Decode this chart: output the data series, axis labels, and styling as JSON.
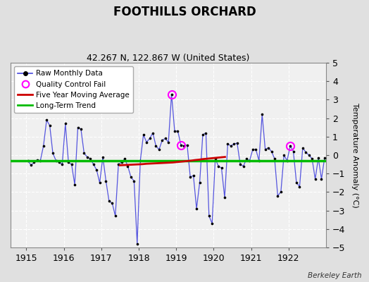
{
  "title": "FOOTHILLS ORCHARD",
  "subtitle": "42.267 N, 122.867 W (United States)",
  "ylabel": "Temperature Anomaly (°C)",
  "credit": "Berkeley Earth",
  "ylim": [
    -5,
    5
  ],
  "xlim": [
    1914.58,
    1923.0
  ],
  "yticks": [
    -5,
    -4,
    -3,
    -2,
    -1,
    0,
    1,
    2,
    3,
    4,
    5
  ],
  "xticks": [
    1915,
    1916,
    1917,
    1918,
    1919,
    1920,
    1921,
    1922
  ],
  "fig_bg_color": "#e0e0e0",
  "plot_bg_color": "#f0f0f0",
  "raw_line_color": "#4444dd",
  "raw_marker_color": "#000000",
  "moving_avg_color": "#cc0000",
  "trend_color": "#00bb00",
  "qc_fail_color": "#ff00ff",
  "long_term_trend_value": -0.3,
  "raw_data": [
    [
      1915.042,
      -0.3
    ],
    [
      1915.125,
      -0.55
    ],
    [
      1915.208,
      -0.4
    ],
    [
      1915.292,
      -0.25
    ],
    [
      1915.375,
      -0.3
    ],
    [
      1915.458,
      0.5
    ],
    [
      1915.542,
      1.9
    ],
    [
      1915.625,
      1.6
    ],
    [
      1915.708,
      0.1
    ],
    [
      1915.792,
      -0.3
    ],
    [
      1915.875,
      -0.4
    ],
    [
      1915.958,
      -0.5
    ],
    [
      1916.042,
      1.7
    ],
    [
      1916.125,
      -0.4
    ],
    [
      1916.208,
      -0.5
    ],
    [
      1916.292,
      -1.6
    ],
    [
      1916.375,
      1.5
    ],
    [
      1916.458,
      1.4
    ],
    [
      1916.542,
      0.1
    ],
    [
      1916.625,
      -0.1
    ],
    [
      1916.708,
      -0.2
    ],
    [
      1916.792,
      -0.5
    ],
    [
      1916.875,
      -0.8
    ],
    [
      1916.958,
      -1.5
    ],
    [
      1917.042,
      -0.1
    ],
    [
      1917.125,
      -1.4
    ],
    [
      1917.208,
      -2.5
    ],
    [
      1917.292,
      -2.6
    ],
    [
      1917.375,
      -3.3
    ],
    [
      1917.458,
      -0.5
    ],
    [
      1917.542,
      -0.4
    ],
    [
      1917.625,
      -0.2
    ],
    [
      1917.708,
      -0.6
    ],
    [
      1917.792,
      -1.2
    ],
    [
      1917.875,
      -1.4
    ],
    [
      1917.958,
      -4.8
    ],
    [
      1918.042,
      -0.3
    ],
    [
      1918.125,
      1.1
    ],
    [
      1918.208,
      0.7
    ],
    [
      1918.292,
      0.9
    ],
    [
      1918.375,
      1.2
    ],
    [
      1918.458,
      0.5
    ],
    [
      1918.542,
      0.3
    ],
    [
      1918.625,
      0.8
    ],
    [
      1918.708,
      0.9
    ],
    [
      1918.792,
      0.7
    ],
    [
      1918.875,
      3.3
    ],
    [
      1918.958,
      1.3
    ],
    [
      1919.042,
      1.3
    ],
    [
      1919.125,
      0.55
    ],
    [
      1919.208,
      0.5
    ],
    [
      1919.292,
      0.55
    ],
    [
      1919.375,
      -1.2
    ],
    [
      1919.458,
      -1.1
    ],
    [
      1919.542,
      -2.9
    ],
    [
      1919.625,
      -1.5
    ],
    [
      1919.708,
      1.1
    ],
    [
      1919.792,
      1.2
    ],
    [
      1919.875,
      -3.3
    ],
    [
      1919.958,
      -3.7
    ],
    [
      1920.042,
      -0.2
    ],
    [
      1920.125,
      -0.6
    ],
    [
      1920.208,
      -0.7
    ],
    [
      1920.292,
      -2.3
    ],
    [
      1920.375,
      0.6
    ],
    [
      1920.458,
      0.5
    ],
    [
      1920.542,
      0.6
    ],
    [
      1920.625,
      0.65
    ],
    [
      1920.708,
      -0.5
    ],
    [
      1920.792,
      -0.6
    ],
    [
      1920.875,
      -0.2
    ],
    [
      1920.958,
      -0.3
    ],
    [
      1921.042,
      0.3
    ],
    [
      1921.125,
      0.3
    ],
    [
      1921.208,
      -0.3
    ],
    [
      1921.292,
      2.2
    ],
    [
      1921.375,
      0.3
    ],
    [
      1921.458,
      0.4
    ],
    [
      1921.542,
      0.2
    ],
    [
      1921.625,
      -0.2
    ],
    [
      1921.708,
      -2.2
    ],
    [
      1921.792,
      -2.0
    ],
    [
      1921.875,
      0.0
    ],
    [
      1921.958,
      -0.3
    ],
    [
      1922.042,
      0.5
    ],
    [
      1922.125,
      0.2
    ],
    [
      1922.208,
      -1.5
    ],
    [
      1922.292,
      -1.7
    ],
    [
      1922.375,
      0.4
    ],
    [
      1922.458,
      0.15
    ],
    [
      1922.542,
      0.0
    ],
    [
      1922.625,
      -0.2
    ],
    [
      1922.708,
      -1.3
    ],
    [
      1922.792,
      -0.15
    ],
    [
      1922.875,
      -1.3
    ],
    [
      1922.958,
      -0.15
    ]
  ],
  "qc_fail_points": [
    [
      1918.875,
      3.3
    ],
    [
      1919.125,
      0.55
    ],
    [
      1922.042,
      0.5
    ]
  ],
  "moving_avg": [
    [
      1917.5,
      -0.55
    ],
    [
      1917.6,
      -0.54
    ],
    [
      1917.7,
      -0.53
    ],
    [
      1917.8,
      -0.52
    ],
    [
      1917.9,
      -0.51
    ],
    [
      1918.0,
      -0.5
    ],
    [
      1918.1,
      -0.49
    ],
    [
      1918.2,
      -0.47
    ],
    [
      1918.3,
      -0.46
    ],
    [
      1918.4,
      -0.45
    ],
    [
      1918.5,
      -0.44
    ],
    [
      1918.6,
      -0.43
    ],
    [
      1918.7,
      -0.42
    ],
    [
      1918.8,
      -0.41
    ],
    [
      1918.9,
      -0.4
    ],
    [
      1919.0,
      -0.38
    ],
    [
      1919.1,
      -0.36
    ],
    [
      1919.2,
      -0.34
    ],
    [
      1919.3,
      -0.32
    ],
    [
      1919.4,
      -0.3
    ],
    [
      1919.5,
      -0.27
    ],
    [
      1919.6,
      -0.25
    ],
    [
      1919.7,
      -0.22
    ],
    [
      1919.8,
      -0.2
    ],
    [
      1919.9,
      -0.18
    ],
    [
      1920.0,
      -0.16
    ],
    [
      1920.1,
      -0.14
    ],
    [
      1920.2,
      -0.12
    ],
    [
      1920.3,
      -0.1
    ]
  ]
}
